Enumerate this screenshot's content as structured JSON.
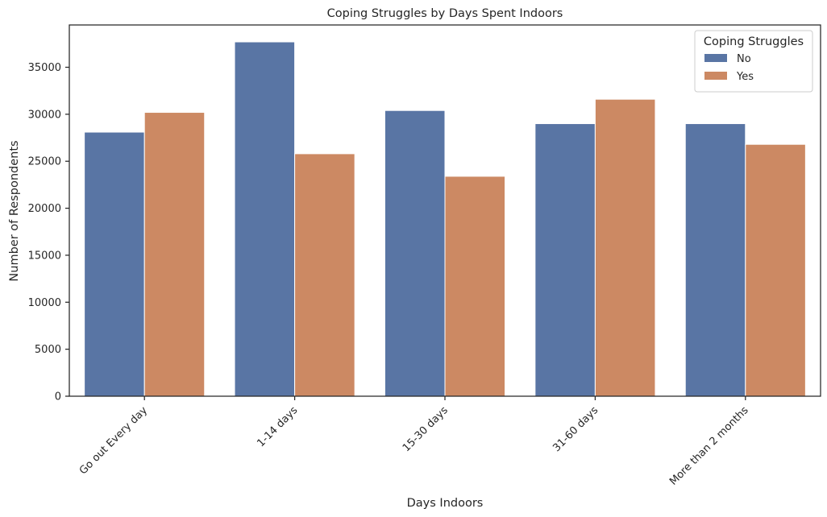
{
  "chart_data": {
    "type": "bar",
    "title": "Coping Struggles by Days Spent Indoors",
    "xlabel": "Days Indoors",
    "ylabel": "Number of Respondents",
    "categories": [
      "Go out Every day",
      "1-14 days",
      "15-30 days",
      "31-60 days",
      "More than 2 months"
    ],
    "series": [
      {
        "name": "No",
        "values": [
          28100,
          37700,
          30400,
          29000,
          29000
        ],
        "color": "#5975a4"
      },
      {
        "name": "Yes",
        "values": [
          30200,
          25800,
          23400,
          31600,
          26800
        ],
        "color": "#cc8963"
      }
    ],
    "ylim": [
      0,
      39500
    ],
    "yticks": [
      0,
      5000,
      10000,
      15000,
      20000,
      25000,
      30000,
      35000
    ],
    "legend": {
      "title": "Coping Struggles",
      "position": "top-right"
    },
    "grid": false
  }
}
